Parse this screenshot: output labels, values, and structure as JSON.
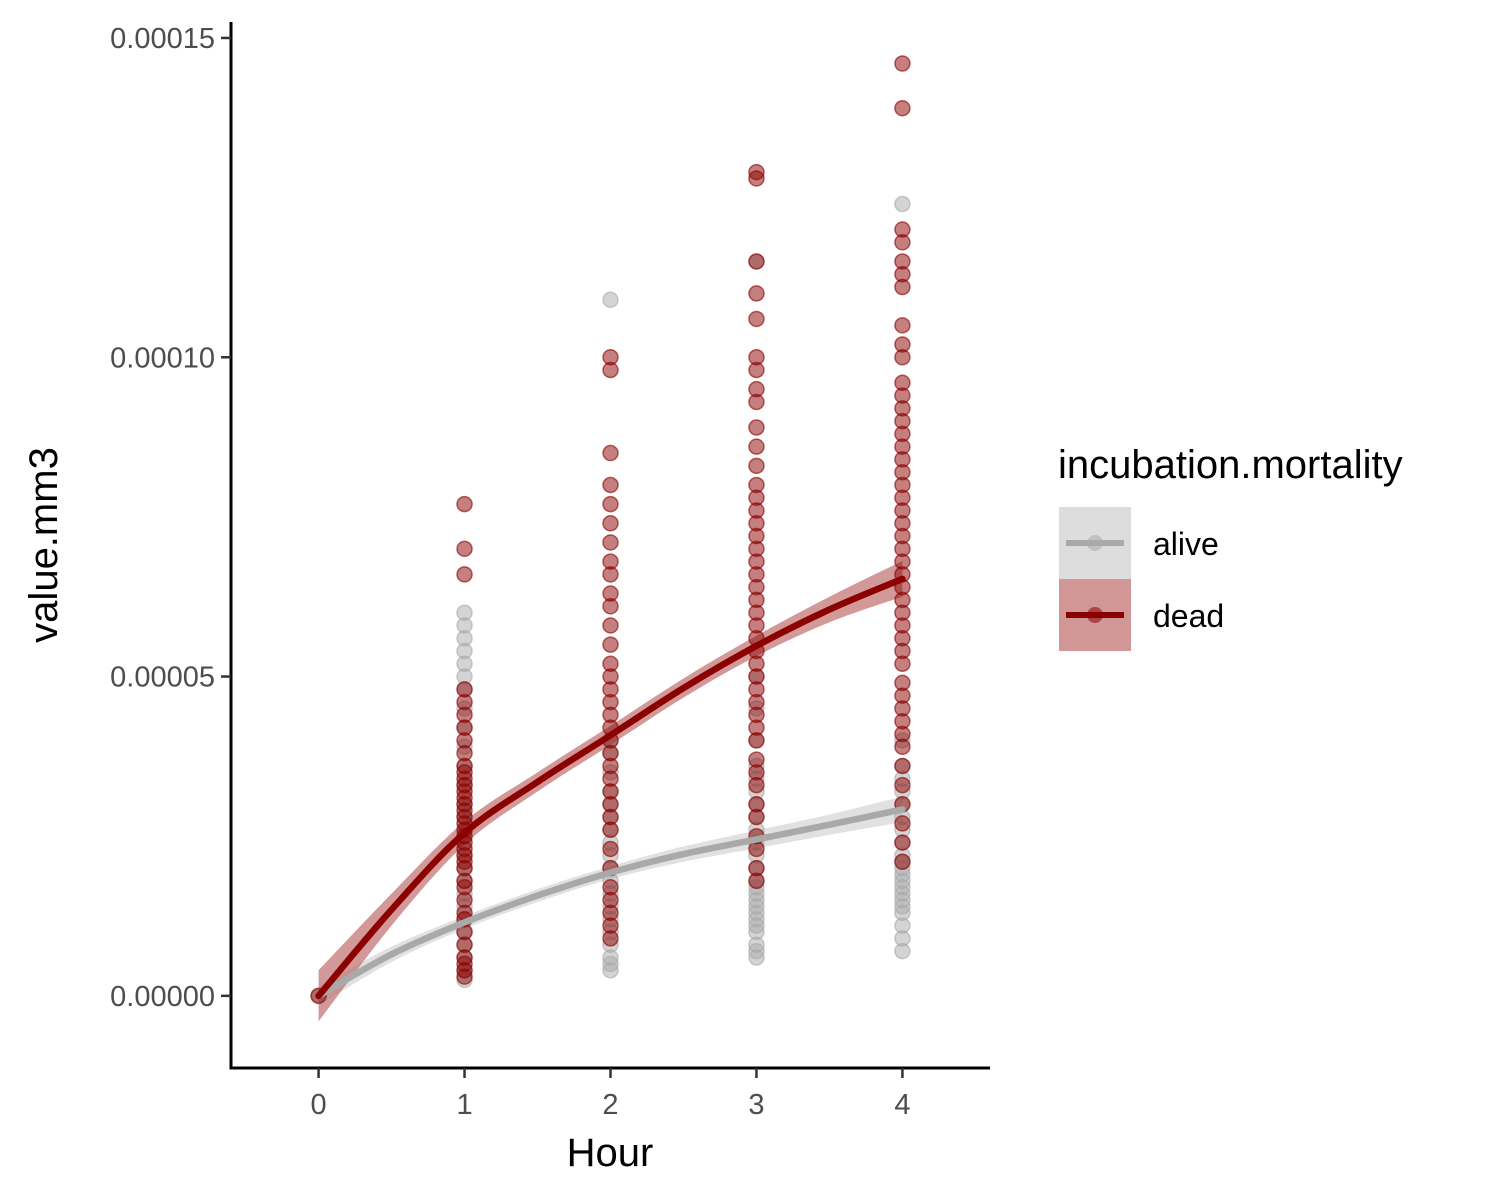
{
  "chart_data": {
    "type": "scatter",
    "title": "",
    "xlabel": "Hour",
    "ylabel": "value.mm3",
    "x_ticks": [
      "0",
      "1",
      "2",
      "3",
      "4"
    ],
    "y_ticks": [
      "0.00000",
      "0.00005",
      "0.00010",
      "0.00015"
    ],
    "xlim": [
      -0.6,
      4.6
    ],
    "ylim": [
      -1.13e-05,
      0.0001525
    ],
    "grid": false,
    "legend": {
      "title": "incubation.mortality",
      "position": "right"
    },
    "series": [
      {
        "name": "alive",
        "color": "#A9A9A9",
        "band_color": "#C8C8C8",
        "points": {
          "0": [
            0.0
          ],
          "1": [
            2.5e-06,
            4e-06,
            6e-06,
            8e-06,
            1e-05,
            1.2e-05,
            1.4e-05,
            1.6e-05,
            1.8e-05,
            2e-05,
            2.2e-05,
            2.5e-05,
            2.8e-05,
            3e-05,
            3.3e-05,
            3.6e-05,
            3.9e-05,
            4.2e-05,
            4.5e-05,
            4.8e-05,
            5e-05,
            5.2e-05,
            5.4e-05,
            5.6e-05,
            5.8e-05,
            6e-05
          ],
          "2": [
            4e-06,
            5e-06,
            6e-06,
            8e-06,
            1e-05,
            1.2e-05,
            1.4e-05,
            1.6e-05,
            1.8e-05,
            2e-05,
            2.2e-05,
            2.4e-05,
            2.6e-05,
            2.8e-05,
            3e-05,
            3.2e-05,
            3.5e-05,
            3.8e-05,
            4e-05,
            0.000109
          ],
          "3": [
            6e-06,
            7e-06,
            8e-06,
            1e-05,
            1.1e-05,
            1.2e-05,
            1.3e-05,
            1.4e-05,
            1.5e-05,
            1.6e-05,
            1.7e-05,
            1.8e-05,
            2e-05,
            2.2e-05,
            2.4e-05,
            2.6e-05,
            2.8e-05,
            3e-05,
            3.2e-05,
            3.4e-05,
            3.6e-05,
            4e-05,
            4.5e-05,
            5e-05,
            0.000115
          ],
          "4": [
            7e-06,
            9e-06,
            1.1e-05,
            1.3e-05,
            1.4e-05,
            1.5e-05,
            1.6e-05,
            1.7e-05,
            1.8e-05,
            1.9e-05,
            2e-05,
            2.1e-05,
            2.2e-05,
            2.4e-05,
            2.6e-05,
            2.8e-05,
            3e-05,
            3.2e-05,
            3.4e-05,
            3.6e-05,
            4e-05,
            0.000124
          ]
        },
        "smooth": {
          "x": [
            0,
            0.5,
            1,
            1.5,
            2,
            2.5,
            3,
            3.5,
            4
          ],
          "y": [
            0.0,
            6.5e-06,
            1.15e-05,
            1.57e-05,
            1.93e-05,
            2.22e-05,
            2.45e-05,
            2.68e-05,
            2.92e-05
          ],
          "se": [
            1.5e-06,
            1.2e-06,
            1e-06,
            1e-06,
            1e-06,
            1.2e-06,
            1.4e-06,
            1.6e-06,
            2e-06
          ]
        }
      },
      {
        "name": "dead",
        "color": "#8B0000",
        "band_color": "#C06C6C",
        "points": {
          "0": [
            0.0
          ],
          "1": [
            3e-06,
            4e-06,
            5e-06,
            6e-06,
            8e-06,
            1e-05,
            1.2e-05,
            1.3e-05,
            1.5e-05,
            1.7e-05,
            1.8e-05,
            2e-05,
            2.1e-05,
            2.2e-05,
            2.3e-05,
            2.4e-05,
            2.5e-05,
            2.6e-05,
            2.7e-05,
            2.8e-05,
            2.9e-05,
            3e-05,
            3.1e-05,
            3.2e-05,
            3.3e-05,
            3.4e-05,
            3.5e-05,
            3.6e-05,
            3.8e-05,
            4e-05,
            4.2e-05,
            4.4e-05,
            4.6e-05,
            4.8e-05,
            6.6e-05,
            7e-05,
            7.7e-05
          ],
          "2": [
            9e-06,
            1.1e-05,
            1.3e-05,
            1.5e-05,
            1.7e-05,
            2e-05,
            2.3e-05,
            2.6e-05,
            2.8e-05,
            3e-05,
            3.2e-05,
            3.4e-05,
            3.6e-05,
            3.8e-05,
            4e-05,
            4.2e-05,
            4.4e-05,
            4.6e-05,
            4.8e-05,
            5e-05,
            5.2e-05,
            5.5e-05,
            5.8e-05,
            6.1e-05,
            6.3e-05,
            6.6e-05,
            6.8e-05,
            7.1e-05,
            7.4e-05,
            7.7e-05,
            8e-05,
            8.5e-05,
            9.8e-05,
            0.0001
          ],
          "3": [
            1.8e-05,
            2e-05,
            2.3e-05,
            2.5e-05,
            2.8e-05,
            3e-05,
            3.3e-05,
            3.5e-05,
            3.7e-05,
            4e-05,
            4.2e-05,
            4.4e-05,
            4.6e-05,
            4.8e-05,
            5e-05,
            5.2e-05,
            5.4e-05,
            5.6e-05,
            5.8e-05,
            6e-05,
            6.2e-05,
            6.4e-05,
            6.6e-05,
            6.8e-05,
            7e-05,
            7.2e-05,
            7.4e-05,
            7.6e-05,
            7.8e-05,
            8e-05,
            8.3e-05,
            8.6e-05,
            8.9e-05,
            9.3e-05,
            9.5e-05,
            9.8e-05,
            0.0001,
            0.000106,
            0.00011,
            0.000115,
            0.000128,
            0.000129
          ],
          "4": [
            2.1e-05,
            2.4e-05,
            2.7e-05,
            3e-05,
            3.3e-05,
            3.6e-05,
            3.9e-05,
            4.1e-05,
            4.3e-05,
            4.5e-05,
            4.7e-05,
            4.9e-05,
            5.2e-05,
            5.4e-05,
            5.6e-05,
            5.8e-05,
            6e-05,
            6.2e-05,
            6.4e-05,
            6.6e-05,
            6.8e-05,
            7e-05,
            7.2e-05,
            7.4e-05,
            7.6e-05,
            7.8e-05,
            8e-05,
            8.2e-05,
            8.4e-05,
            8.6e-05,
            8.8e-05,
            9e-05,
            9.2e-05,
            9.4e-05,
            9.6e-05,
            0.0001,
            0.000102,
            0.000105,
            0.000111,
            0.000113,
            0.000115,
            0.000118,
            0.00012,
            0.000139,
            0.000146
          ]
        },
        "smooth": {
          "x": [
            0,
            0.5,
            1,
            1.5,
            2,
            2.5,
            3,
            3.5,
            4
          ],
          "y": [
            0.0,
            1.35e-05,
            2.55e-05,
            3.35e-05,
            4.08e-05,
            4.82e-05,
            5.48e-05,
            6.05e-05,
            6.53e-05
          ],
          "se": [
            4e-06,
            2.5e-06,
            1.8e-06,
            1.5e-06,
            1.5e-06,
            1.5e-06,
            1.6e-06,
            2e-06,
            2.8e-06
          ]
        }
      }
    ]
  }
}
